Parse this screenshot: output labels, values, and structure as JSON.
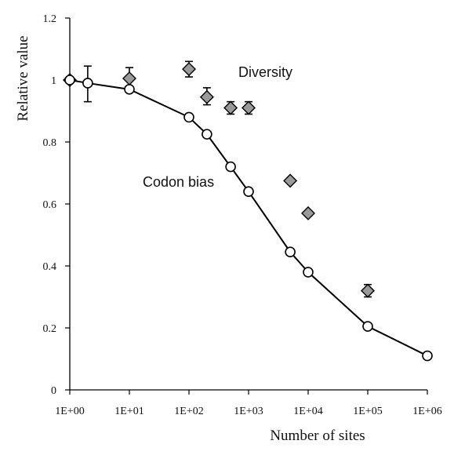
{
  "chart_data": {
    "type": "scatter",
    "xlabel": "Number of sites",
    "ylabel": "Relative value",
    "x_scale": "log",
    "xlim": [
      1,
      1000000
    ],
    "ylim": [
      0,
      1.2
    ],
    "x_ticks": [
      1,
      10,
      100,
      1000,
      10000,
      100000,
      1000000
    ],
    "x_tick_labels": [
      "1E+00",
      "1E+01",
      "1E+02",
      "1E+03",
      "1E+04",
      "1E+05",
      "1E+06"
    ],
    "y_ticks": [
      0,
      0.2,
      0.4,
      0.6,
      0.8,
      1,
      1.2
    ],
    "y_tick_labels": [
      "0",
      "0.2",
      "0.4",
      "0.6",
      "0.8",
      "1",
      "1.2"
    ],
    "grid": false,
    "series": [
      {
        "name": "Codon bias",
        "marker": "open-circle",
        "line": true,
        "color": "#000000",
        "x": [
          1,
          2,
          10,
          100,
          200,
          500,
          1000,
          5000,
          10000,
          100000,
          1000000
        ],
        "y": [
          1.0,
          0.99,
          0.97,
          0.88,
          0.825,
          0.72,
          0.64,
          0.445,
          0.38,
          0.205,
          0.11
        ],
        "error_low": [
          null,
          0.06,
          null,
          null,
          null,
          null,
          null,
          null,
          null,
          null,
          null
        ],
        "error_high": [
          null,
          0.055,
          null,
          null,
          null,
          null,
          null,
          null,
          null,
          null,
          null
        ]
      },
      {
        "name": "Diversity",
        "marker": "gray-diamond",
        "line": false,
        "color": "#9a9a9a",
        "x": [
          1,
          10,
          100,
          200,
          500,
          1000,
          5000,
          10000,
          100000
        ],
        "y": [
          1.0,
          1.005,
          1.035,
          0.945,
          0.91,
          0.91,
          0.675,
          0.57,
          0.32
        ],
        "error_low": [
          null,
          0.03,
          0.025,
          0.025,
          0.02,
          0.02,
          null,
          null,
          0.02
        ],
        "error_high": [
          null,
          0.035,
          0.025,
          0.03,
          0.02,
          0.02,
          null,
          null,
          0.02
        ]
      }
    ]
  }
}
